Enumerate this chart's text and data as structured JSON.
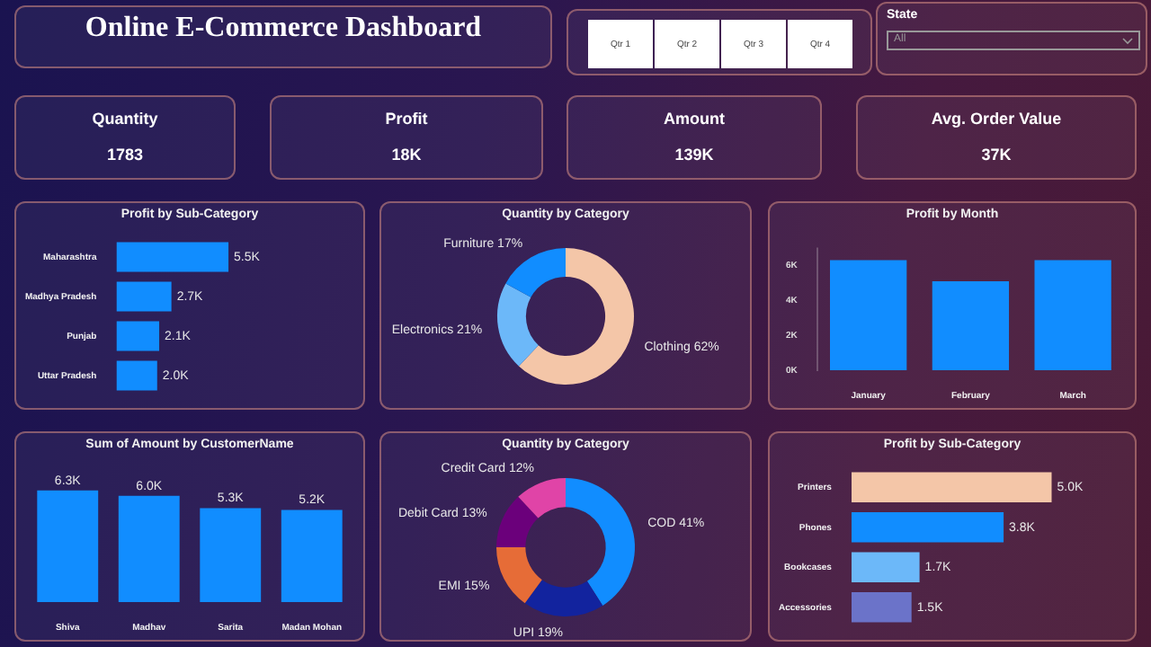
{
  "chart_data": [
    {
      "type": "other",
      "title": "Online E-Commerce Dashboard"
    },
    {
      "type": "other",
      "categories": [
        "Qtr 1",
        "Qtr 2",
        "Qtr 3",
        "Qtr 4"
      ]
    },
    {
      "type": "other",
      "title": "State",
      "annotations": [
        "All"
      ]
    },
    {
      "type": "other",
      "title": "Quantity",
      "annotations": [
        "1783"
      ]
    },
    {
      "type": "other",
      "title": "Profit",
      "annotations": [
        "18K"
      ]
    },
    {
      "type": "other",
      "title": "Amount",
      "annotations": [
        "139K"
      ]
    },
    {
      "type": "other",
      "title": "Avg. Order Value",
      "annotations": [
        "37K"
      ]
    },
    {
      "type": "bar",
      "orientation": "horizontal",
      "title": "Profit by Sub-Category",
      "categories": [
        "Maharashtra",
        "Madhya Pradesh",
        "Punjab",
        "Uttar Pradesh"
      ],
      "values": [
        5.5,
        2.7,
        2.1,
        2.0
      ],
      "color": "#118dff",
      "value_labels": [
        "5.5K",
        "2.7K",
        "2.1K",
        "2.0K"
      ]
    },
    {
      "type": "donut",
      "title": "Quantity by Category",
      "categories": [
        "Clothing",
        "Electronics",
        "Furniture"
      ],
      "values": [
        62,
        21,
        17
      ],
      "colors": [
        "#f4c6a8",
        "#6cb8f9",
        "#118dff"
      ],
      "value_labels": [
        "62%",
        "21%",
        "17%"
      ]
    },
    {
      "type": "bar",
      "title": "Profit by Month",
      "categories": [
        "January",
        "February",
        "March"
      ],
      "values": [
        6.3,
        5.1,
        6.3
      ],
      "color": "#118dff",
      "ylim": [
        0,
        7
      ],
      "yticks": [
        {
          "value": 0,
          "label": "0K"
        },
        {
          "value": 2,
          "label": "2K"
        },
        {
          "value": 4,
          "label": "4K"
        },
        {
          "value": 6,
          "label": "6K"
        }
      ]
    },
    {
      "type": "bar",
      "title": "Sum of Amount by CustomerName",
      "categories": [
        "Shiva",
        "Madhav",
        "Sarita",
        "Madan Mohan"
      ],
      "values": [
        6.3,
        6.0,
        5.3,
        5.2
      ],
      "color": "#118dff",
      "value_labels": [
        "6.3K",
        "6.0K",
        "5.3K",
        "5.2K"
      ]
    },
    {
      "type": "donut",
      "title": "Quantity by Category",
      "categories": [
        "COD",
        "UPI",
        "EMI",
        "Debit Card",
        "Credit Card"
      ],
      "values": [
        41,
        19,
        15,
        13,
        12
      ],
      "colors": [
        "#118dff",
        "#12239e",
        "#e66c37",
        "#6b007b",
        "#e044a7"
      ],
      "value_labels": [
        "41%",
        "19%",
        "15%",
        "13%",
        "12%"
      ]
    },
    {
      "type": "bar",
      "orientation": "horizontal",
      "title": "Profit by Sub-Category",
      "categories": [
        "Printers",
        "Phones",
        "Bookcases",
        "Accessories"
      ],
      "values": [
        5.0,
        3.8,
        1.7,
        1.5
      ],
      "colors": [
        "#f4c6a8",
        "#118dff",
        "#6cb8f9",
        "#6b73c9"
      ],
      "value_labels": [
        "5.0K",
        "3.8K",
        "1.7K",
        "1.5K"
      ]
    }
  ]
}
